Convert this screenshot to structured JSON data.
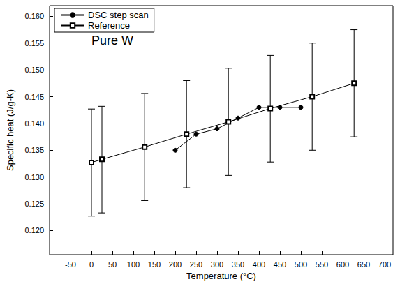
{
  "chart_data": {
    "type": "line",
    "x_label": "Temperature (°C)",
    "y_label": "Specific heat (J/g-K)",
    "annotation": {
      "text": "Pure W",
      "x": 0,
      "y": 0.1555
    },
    "xlim": [
      -100,
      720
    ],
    "xticks": [
      -50,
      0,
      50,
      100,
      150,
      200,
      250,
      300,
      350,
      400,
      450,
      500,
      550,
      600,
      650,
      700
    ],
    "ylim": [
      0.1155,
      0.162
    ],
    "yticks": [
      {
        "value": 0.12,
        "label": "0.120"
      },
      {
        "value": 0.125,
        "label": "0.125"
      },
      {
        "value": 0.13,
        "label": "0.130"
      },
      {
        "value": 0.135,
        "label": "0.135"
      },
      {
        "value": 0.14,
        "label": "0.140"
      },
      {
        "value": 0.145,
        "label": "0.145"
      },
      {
        "value": 0.15,
        "label": "0.150"
      },
      {
        "value": 0.155,
        "label": "0.155"
      },
      {
        "value": 0.16,
        "label": "0.160"
      }
    ],
    "grid": false,
    "legend": "upper left",
    "series": [
      {
        "name": "DSC step scan",
        "color": "#000000",
        "marker": "circle",
        "line_style": "solid",
        "x": [
          200,
          250,
          300,
          350,
          400,
          450,
          500
        ],
        "values": [
          0.135,
          0.138,
          0.139,
          0.141,
          0.143,
          0.143,
          0.143
        ]
      },
      {
        "name": "Reference",
        "color": "#000000",
        "marker": "open_square",
        "line_style": "solid",
        "x": [
          0,
          25,
          127,
          227,
          327,
          427,
          527,
          627
        ],
        "values": [
          0.1327,
          0.1333,
          0.1356,
          0.138,
          0.1403,
          0.1428,
          0.145,
          0.1475
        ],
        "error_low": [
          0.1227,
          0.1233,
          0.1256,
          0.128,
          0.1303,
          0.1328,
          0.135,
          0.1375
        ],
        "error_high": [
          0.1427,
          0.1432,
          0.1456,
          0.148,
          0.1503,
          0.1527,
          0.155,
          0.1575
        ]
      }
    ]
  }
}
